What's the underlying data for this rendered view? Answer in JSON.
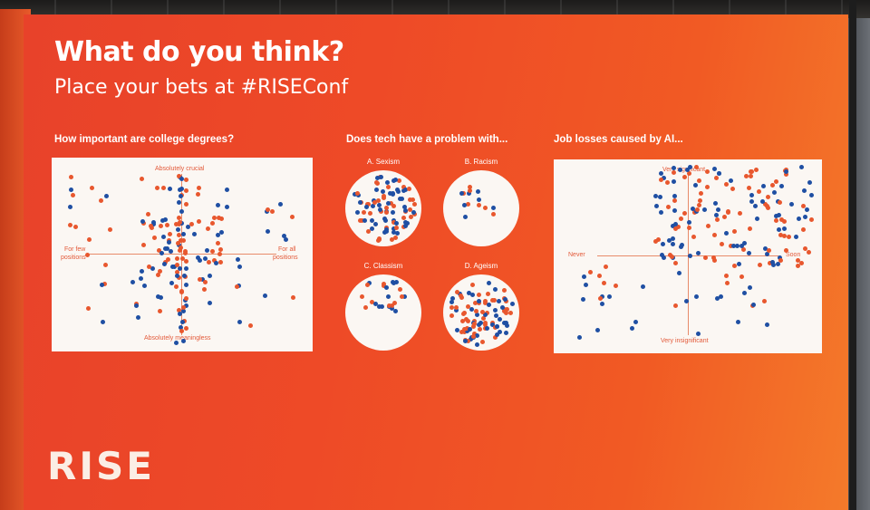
{
  "board": {
    "title": "What do you think?",
    "subtitle": "Place your bets at #RISEConf",
    "logo": "RISE"
  },
  "questions": {
    "q1": {
      "title": "How important are college degrees?",
      "top": "Absolutely crucial",
      "bottom": "Absolutely meaningless",
      "left_line1": "For few",
      "left_line2": "positions",
      "right_line1": "For all",
      "right_line2": "positions"
    },
    "q2": {
      "title": "Does tech have a problem with...",
      "a": "A. Sexism",
      "b": "B. Racism",
      "c": "C. Classism",
      "d": "D. Ageism"
    },
    "q3": {
      "title": "Job losses caused by AI...",
      "top": "Very significant",
      "bottom": "Very insignificant",
      "left": "Never",
      "right": "Soon"
    }
  },
  "colors": {
    "orange_dot": "#e8572e",
    "blue_dot": "#1f4fa3",
    "board": "#ee4a27",
    "panel": "#fbf7f3"
  }
}
